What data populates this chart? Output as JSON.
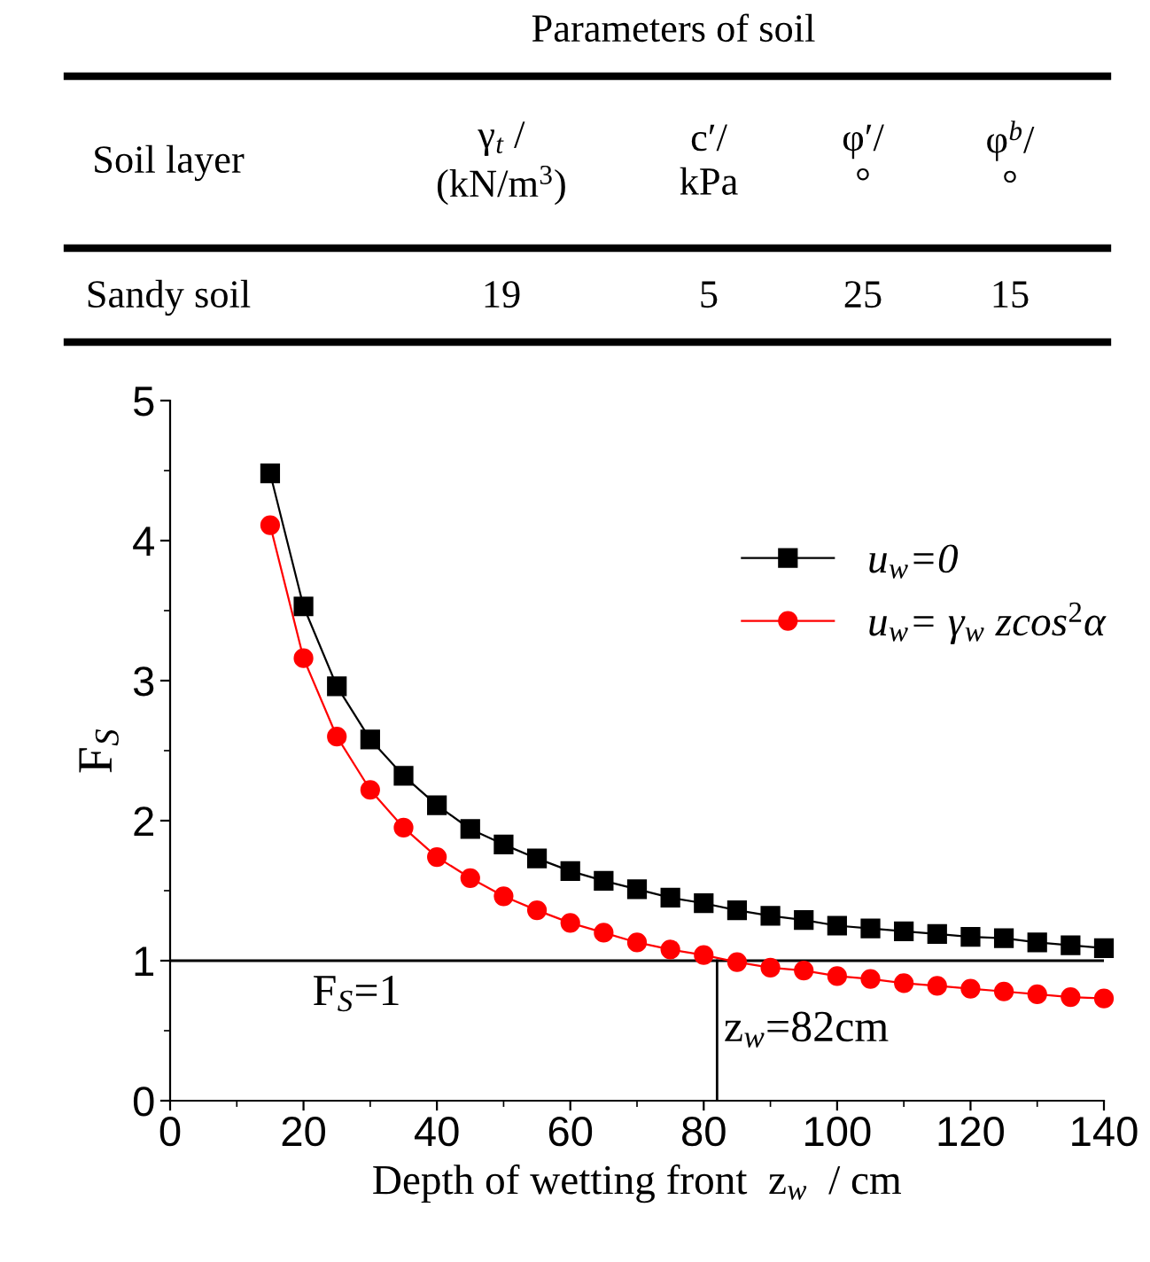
{
  "chart_data": {
    "type": "line",
    "xlabel": "Depth of wetting front  z$_{w}$  / cm",
    "ylabel": "F$_{S}$",
    "x": [
      15,
      20,
      25,
      30,
      35,
      40,
      45,
      50,
      55,
      60,
      65,
      70,
      75,
      80,
      85,
      90,
      95,
      100,
      105,
      110,
      115,
      120,
      125,
      130,
      135,
      140
    ],
    "series": [
      {
        "name": "u$_{w}$=0",
        "color": "#000000",
        "marker": "square",
        "values": [
          4.48,
          3.53,
          2.96,
          2.58,
          2.32,
          2.11,
          1.94,
          1.83,
          1.73,
          1.64,
          1.57,
          1.51,
          1.45,
          1.41,
          1.36,
          1.32,
          1.29,
          1.25,
          1.23,
          1.21,
          1.19,
          1.17,
          1.16,
          1.13,
          1.11,
          1.09
        ]
      },
      {
        "name": "u$_{w}$= γ$_{w}$ zcos$^{2}$α",
        "color": "#ff0000",
        "marker": "circle",
        "values": [
          4.11,
          3.16,
          2.6,
          2.22,
          1.95,
          1.74,
          1.59,
          1.46,
          1.36,
          1.27,
          1.2,
          1.13,
          1.08,
          1.04,
          0.99,
          0.95,
          0.93,
          0.89,
          0.87,
          0.84,
          0.82,
          0.8,
          0.78,
          0.76,
          0.74,
          0.73
        ]
      }
    ],
    "xlim": [
      0,
      140
    ],
    "xticks": [
      0,
      20,
      40,
      60,
      80,
      100,
      120,
      140
    ],
    "ylim": [
      0,
      5
    ],
    "yticks": [
      0,
      1,
      2,
      3,
      4,
      5
    ],
    "grid": false,
    "legend": "top right",
    "line_style": "solid",
    "ref_lines": [
      {
        "axis": "y",
        "value": 1,
        "label": "F$_{S}$=1",
        "color": "#000000"
      },
      {
        "axis": "x",
        "value": 82,
        "label": "z$_{w}$=82cm",
        "color": "#000000"
      }
    ],
    "annotations": [
      "Parameters of soil",
      "Soil layer",
      "γ$_{t}$ /\n(kN/m$^{3}$)",
      "c′/\nkPa",
      "φ′/\n°",
      "φ$^{b}$/\n°",
      "Sandy soil",
      "19",
      "5",
      "25",
      "15"
    ]
  }
}
